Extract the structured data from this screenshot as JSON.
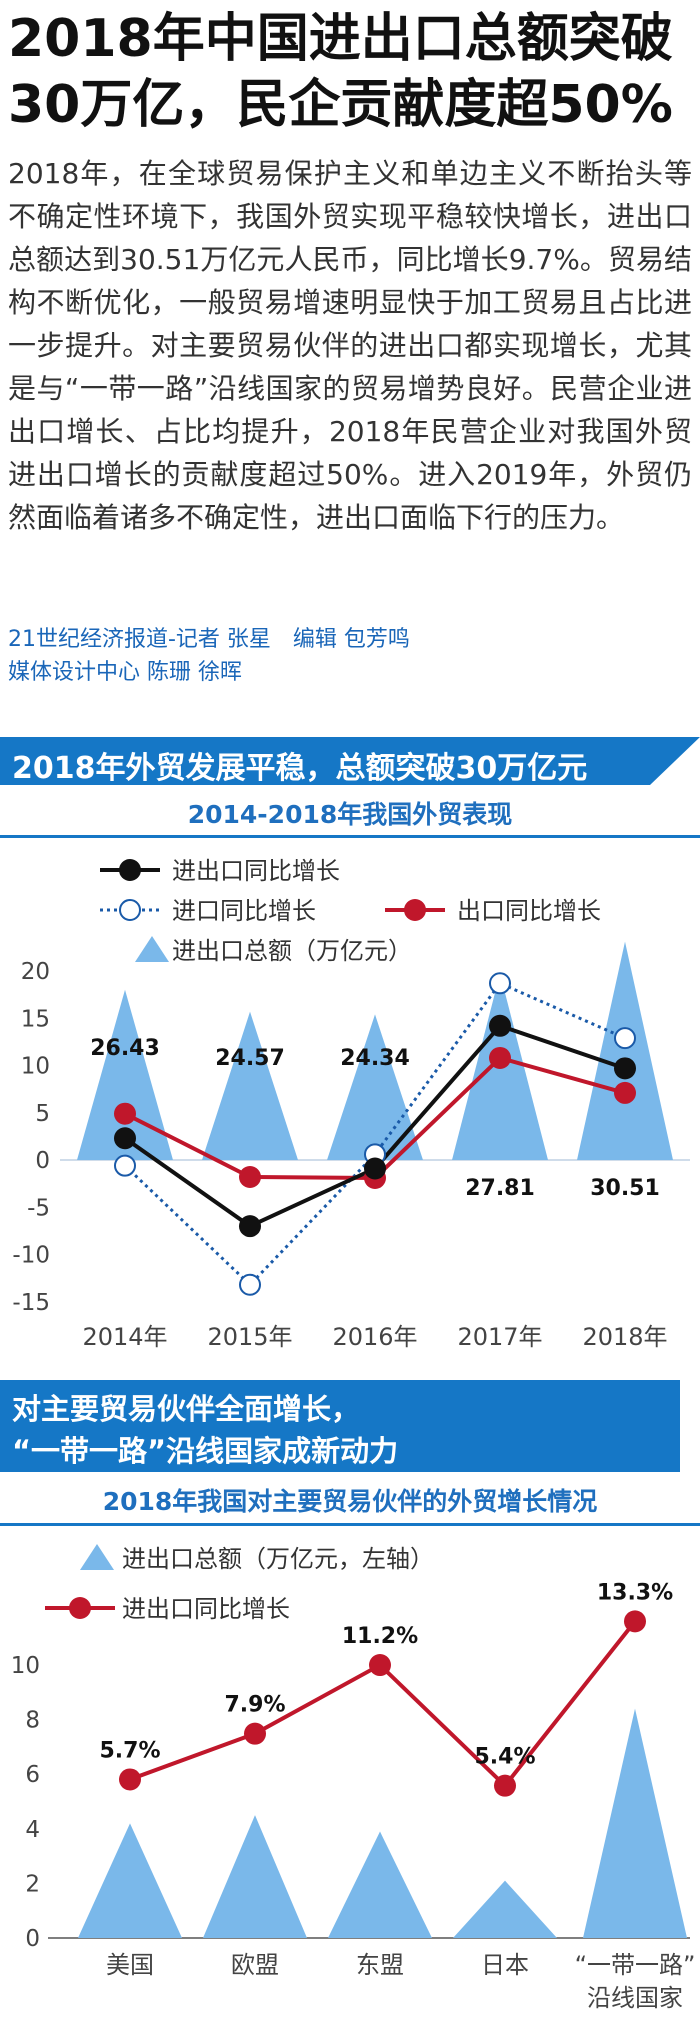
{
  "headline": {
    "line1": "2018年中国进出口总额突破",
    "line2": "30万亿，民企贡献度超50%"
  },
  "body": {
    "text": "2018年，在全球贸易保护主义和单边主义不断抬头等不确定性环境下，我国外贸实现平稳较快增长，进出口总额达到30.51万亿元人民币，同比增长9.7%。贸易结构不断优化，一般贸易增速明显快于加工贸易且占比进一步提升。对主要贸易伙伴的进出口都实现增长，尤其是与“一带一路”沿线国家的贸易增势良好。民营企业进出口增长、占比均提升，2018年民营企业对我国外贸进出口增长的贡献度超过50%。进入2019年，外贸仍然面临着诸多不确定性，进出口面临下行的压力。"
  },
  "byline": {
    "line1": "21世纪经济报道-记者 张星　编辑 包芳鸣",
    "line2": "媒体设计中心 陈珊 徐晖"
  },
  "section1": {
    "banner": "2018年外贸发展平稳，总额突破30万亿元",
    "subtitle": "2014-2018年我国外贸表现"
  },
  "section2": {
    "banner_line1": "对主要贸易伙伴全面增长，",
    "banner_line2": "“一带一路”沿线国家成新动力",
    "subtitle": "2018年我国对主要贸易伙伴的外贸增长情况"
  },
  "colors": {
    "brand_blue": "#1577c6",
    "triangle_blue": "#7ab8ea",
    "red": "#c0172b",
    "black": "#111111",
    "dot_blue": "#1a5aa8"
  },
  "chart_data": [
    {
      "type": "line",
      "title": "2014-2018年我国外贸表现",
      "categories": [
        "2014年",
        "2015年",
        "2016年",
        "2017年",
        "2018年"
      ],
      "yticks": [
        "20",
        "15",
        "10",
        "5",
        "0",
        "-5",
        "-10",
        "-15"
      ],
      "ylim": [
        -15,
        20
      ],
      "legend": {
        "total_growth": "进出口同比增长",
        "import_growth": "进口同比增长",
        "export_growth": "出口同比增长",
        "total": "进出口总额（万亿元）"
      },
      "series": [
        {
          "name": "进出口同比增长",
          "values": [
            2.3,
            -7.0,
            -0.9,
            14.2,
            9.7
          ]
        },
        {
          "name": "进口同比增长",
          "values": [
            -0.6,
            -13.2,
            0.6,
            18.7,
            12.9
          ]
        },
        {
          "name": "出口同比增长",
          "values": [
            4.9,
            -1.8,
            -1.9,
            10.8,
            7.1
          ]
        },
        {
          "name": "进出口总额（万亿元）",
          "values": [
            26.43,
            24.57,
            24.34,
            27.81,
            30.51
          ]
        }
      ],
      "total_labels": [
        "26.43",
        "24.57",
        "24.34",
        "27.81",
        "30.51"
      ]
    },
    {
      "type": "line",
      "title": "2018年我国对主要贸易伙伴的外贸增长情况",
      "categories": [
        "美国",
        "欧盟",
        "东盟",
        "日本",
        "“一带一路”\n沿线国家"
      ],
      "category_line1": [
        "美国",
        "欧盟",
        "东盟",
        "日本",
        "“一带一路”"
      ],
      "category_line2": [
        "",
        "",
        "",
        "",
        "沿线国家"
      ],
      "yticks": [
        "10",
        "8",
        "6",
        "4",
        "2",
        "0"
      ],
      "ylim": [
        0,
        11.5
      ],
      "legend": {
        "total": "进出口总额（万亿元，左轴）",
        "growth": "进出口同比增长"
      },
      "series": [
        {
          "name": "进出口总额（万亿元，左轴）",
          "values": [
            4.2,
            4.5,
            3.9,
            2.1,
            8.4
          ]
        },
        {
          "name": "进出口同比增长",
          "values": [
            5.7,
            7.9,
            11.2,
            5.4,
            13.3
          ]
        }
      ],
      "growth_labels": [
        "5.7%",
        "7.9%",
        "11.2%",
        "5.4%",
        "13.3%"
      ]
    }
  ]
}
